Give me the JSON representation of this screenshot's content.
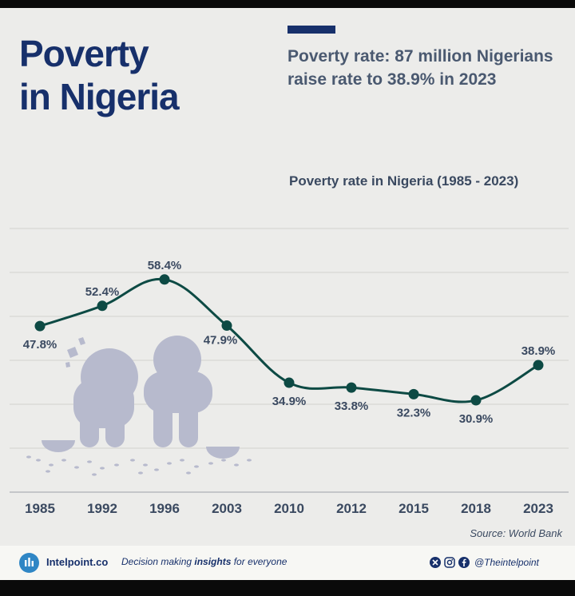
{
  "header": {
    "title": "Poverty\nin Nigeria",
    "subtitle": "Poverty rate: 87 million Nigerians raise rate to 38.9% in 2023"
  },
  "chart_data": {
    "type": "line",
    "title": "Poverty rate in Nigeria (1985 - 2023)",
    "xlabel": "",
    "ylabel": "",
    "categories": [
      "1985",
      "1992",
      "1996",
      "2003",
      "2010",
      "2012",
      "2015",
      "2018",
      "2023"
    ],
    "values": [
      47.8,
      52.4,
      58.4,
      47.9,
      34.9,
      33.8,
      32.3,
      30.9,
      38.9
    ],
    "value_labels": [
      "47.8%",
      "52.4%",
      "58.4%",
      "47.9%",
      "34.9%",
      "33.8%",
      "32.3%",
      "30.9%",
      "38.9%"
    ],
    "ylim": [
      10,
      70
    ],
    "grid": true,
    "line_color": "#0d4a44",
    "label_color": "#3a4960"
  },
  "source": "Source: World Bank",
  "footer": {
    "brand": "Intelpoint.co",
    "tagline_before": "Decision making ",
    "tagline_bold": "insights",
    "tagline_after": " for everyone",
    "handle": "@Theintelpoint",
    "icons": [
      "x-icon",
      "instagram-icon",
      "facebook-icon"
    ]
  }
}
